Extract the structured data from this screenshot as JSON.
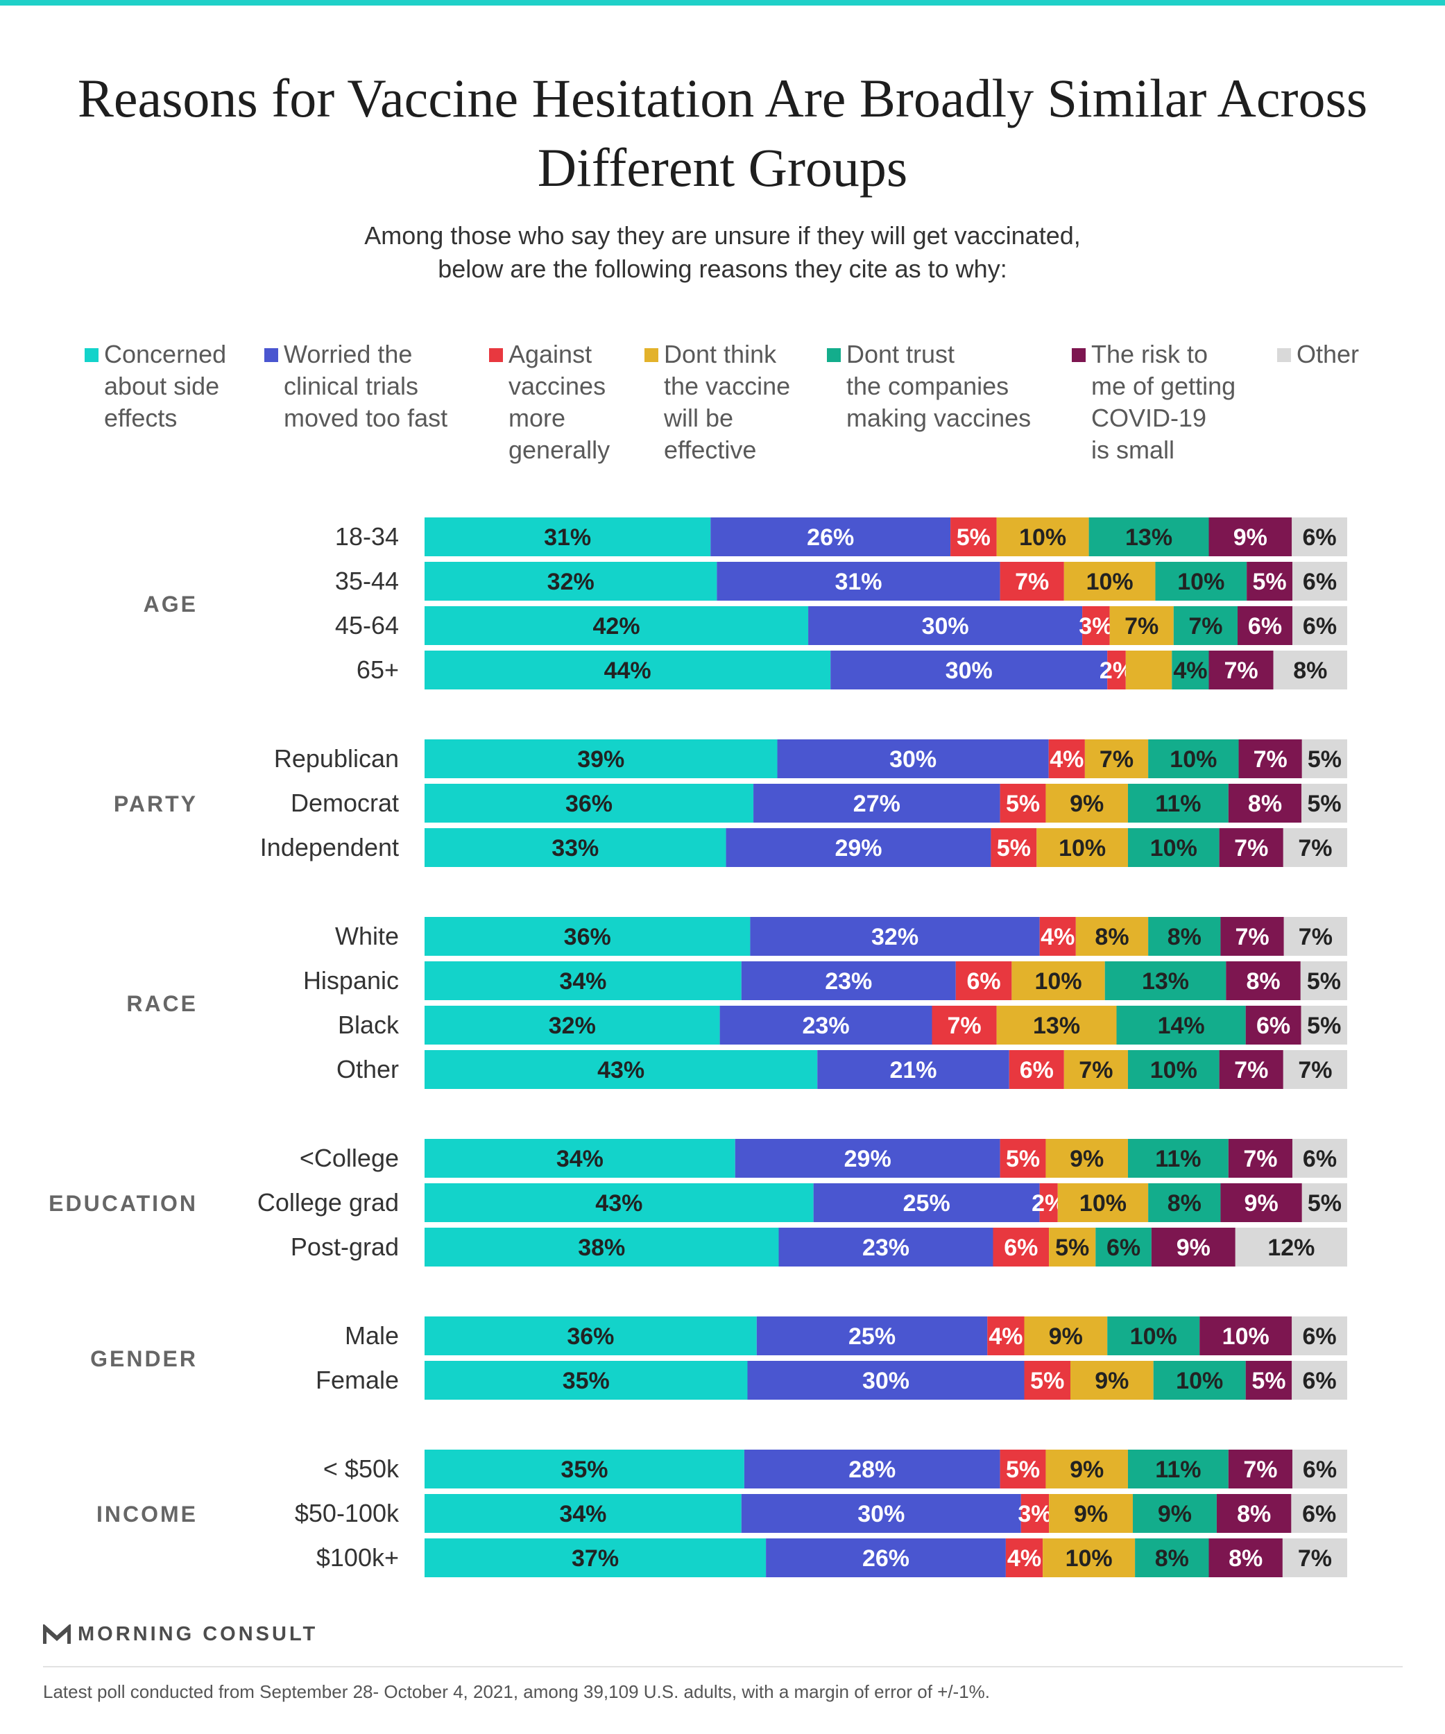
{
  "header": {
    "title": "Reasons for Vaccine Hesitation Are Broadly Similar Across Different Groups",
    "subtitle": "Among those who say they are unsure if they will get vaccinated,\nbelow are the following reasons they cite as to why:"
  },
  "legend": [
    {
      "label": "Concerned\nabout side\neffects",
      "color": "#13d3ca"
    },
    {
      "label": "Worried the\nclinical trials\nmoved too fast",
      "color": "#4a56d0"
    },
    {
      "label": "Against\nvaccines\nmore\ngenerally",
      "color": "#e8383f"
    },
    {
      "label": "Dont think\nthe vaccine\nwill be\neffective",
      "color": "#e3b22b"
    },
    {
      "label": "Dont trust\nthe companies\nmaking vaccines",
      "color": "#13ad8c"
    },
    {
      "label": "The risk to\nme of getting\nCOVID-19\nis small",
      "color": "#7d1650"
    },
    {
      "label": "Other",
      "color": "#d9d9d9"
    }
  ],
  "chart_data": {
    "type": "bar",
    "orientation": "horizontal",
    "stacked": true,
    "series": [
      {
        "name": "Concerned about side effects",
        "color": "#13d3ca",
        "label_color": "#222222"
      },
      {
        "name": "Worried the clinical trials moved too fast",
        "color": "#4a56d0",
        "label_color": "#ffffff"
      },
      {
        "name": "Against vaccines more generally",
        "color": "#e8383f",
        "label_color": "#ffffff"
      },
      {
        "name": "Dont think the vaccine will be effective",
        "color": "#e3b22b",
        "label_color": "#222222"
      },
      {
        "name": "Dont trust the companies making vaccines",
        "color": "#13ad8c",
        "label_color": "#222222"
      },
      {
        "name": "The risk to me of getting COVID-19 is small",
        "color": "#7d1650",
        "label_color": "#ffffff"
      },
      {
        "name": "Other",
        "color": "#d9d9d9",
        "label_color": "#222222"
      }
    ],
    "groups": [
      {
        "name": "AGE",
        "rows": [
          {
            "label": "18-34",
            "values": [
              31,
              26,
              5,
              10,
              13,
              9,
              6
            ],
            "labels": [
              "31%",
              "26%",
              "5%",
              "10%",
              "13%",
              "9%",
              "6%"
            ]
          },
          {
            "label": "35-44",
            "values": [
              32,
              31,
              7,
              10,
              10,
              5,
              6
            ],
            "labels": [
              "32%",
              "31%",
              "7%",
              "10%",
              "10%",
              "5%",
              "6%"
            ]
          },
          {
            "label": "45-64",
            "values": [
              42,
              30,
              3,
              7,
              7,
              6,
              6
            ],
            "labels": [
              "42%",
              "30%",
              "3%",
              "7%",
              "7%",
              "6%",
              "6%"
            ]
          },
          {
            "label": "65+",
            "values": [
              44,
              30,
              2,
              5,
              4,
              7,
              8
            ],
            "labels": [
              "44%",
              "30%",
              "2%",
              "",
              "4%",
              "7%",
              "8%"
            ]
          }
        ]
      },
      {
        "name": "PARTY",
        "rows": [
          {
            "label": "Republican",
            "values": [
              39,
              30,
              4,
              7,
              10,
              7,
              5
            ],
            "labels": [
              "39%",
              "30%",
              "4%",
              "7%",
              "10%",
              "7%",
              "5%"
            ]
          },
          {
            "label": "Democrat",
            "values": [
              36,
              27,
              5,
              9,
              11,
              8,
              5
            ],
            "labels": [
              "36%",
              "27%",
              "5%",
              "9%",
              "11%",
              "8%",
              "5%"
            ]
          },
          {
            "label": "Independent",
            "values": [
              33,
              29,
              5,
              10,
              10,
              7,
              7
            ],
            "labels": [
              "33%",
              "29%",
              "5%",
              "10%",
              "10%",
              "7%",
              "7%"
            ]
          }
        ]
      },
      {
        "name": "RACE",
        "rows": [
          {
            "label": "White",
            "values": [
              36,
              32,
              4,
              8,
              8,
              7,
              7
            ],
            "labels": [
              "36%",
              "32%",
              "4%",
              "8%",
              "8%",
              "7%",
              "7%"
            ]
          },
          {
            "label": "Hispanic",
            "values": [
              34,
              23,
              6,
              10,
              13,
              8,
              5
            ],
            "labels": [
              "34%",
              "23%",
              "6%",
              "10%",
              "13%",
              "8%",
              "5%"
            ]
          },
          {
            "label": "Black",
            "values": [
              32,
              23,
              7,
              13,
              14,
              6,
              5
            ],
            "labels": [
              "32%",
              "23%",
              "7%",
              "13%",
              "14%",
              "6%",
              "5%"
            ]
          },
          {
            "label": "Other",
            "values": [
              43,
              21,
              6,
              7,
              10,
              7,
              7
            ],
            "labels": [
              "43%",
              "21%",
              "6%",
              "7%",
              "10%",
              "7%",
              "7%"
            ]
          }
        ]
      },
      {
        "name": "EDUCATION",
        "rows": [
          {
            "label": "<College",
            "values": [
              34,
              29,
              5,
              9,
              11,
              7,
              6
            ],
            "labels": [
              "34%",
              "29%",
              "5%",
              "9%",
              "11%",
              "7%",
              "6%"
            ]
          },
          {
            "label": "College grad",
            "values": [
              43,
              25,
              2,
              10,
              8,
              9,
              5
            ],
            "labels": [
              "43%",
              "25%",
              "2%",
              "10%",
              "8%",
              "9%",
              "5%"
            ]
          },
          {
            "label": "Post-grad",
            "values": [
              38,
              23,
              6,
              5,
              6,
              9,
              12
            ],
            "labels": [
              "38%",
              "23%",
              "6%",
              "5%",
              "6%",
              "9%",
              "12%"
            ]
          }
        ]
      },
      {
        "name": "GENDER",
        "rows": [
          {
            "label": "Male",
            "values": [
              36,
              25,
              4,
              9,
              10,
              10,
              6
            ],
            "labels": [
              "36%",
              "25%",
              "4%",
              "9%",
              "10%",
              "10%",
              "6%"
            ]
          },
          {
            "label": "Female",
            "values": [
              35,
              30,
              5,
              9,
              10,
              5,
              6
            ],
            "labels": [
              "35%",
              "30%",
              "5%",
              "9%",
              "10%",
              "5%",
              "6%"
            ]
          }
        ]
      },
      {
        "name": "INCOME",
        "rows": [
          {
            "label": "< $50k",
            "values": [
              35,
              28,
              5,
              9,
              11,
              7,
              6
            ],
            "labels": [
              "35%",
              "28%",
              "5%",
              "9%",
              "11%",
              "7%",
              "6%"
            ]
          },
          {
            "label": "$50-100k",
            "values": [
              34,
              30,
              3,
              9,
              9,
              8,
              6
            ],
            "labels": [
              "34%",
              "30%",
              "3%",
              "9%",
              "9%",
              "8%",
              "6%"
            ]
          },
          {
            "label": "$100k+",
            "values": [
              37,
              26,
              4,
              10,
              8,
              8,
              7
            ],
            "labels": [
              "37%",
              "26%",
              "4%",
              "10%",
              "8%",
              "8%",
              "7%"
            ]
          }
        ]
      }
    ]
  },
  "branding": {
    "logo_text": "MORNING CONSULT",
    "logo_icon": "morning-consult-logo-icon"
  },
  "footer": {
    "note": "Latest poll conducted from September 28- October 4, 2021, among 39,109 U.S. adults, with a margin of error of +/-1%."
  }
}
